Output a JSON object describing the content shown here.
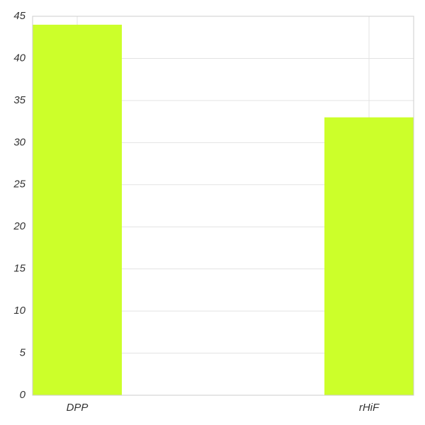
{
  "chart_data": {
    "type": "bar",
    "title": "",
    "xlabel": "",
    "ylabel": "",
    "categories": [
      "DPP",
      "rHiF"
    ],
    "series": [
      {
        "values": [
          44,
          33
        ]
      }
    ],
    "ylim": [
      0,
      45
    ],
    "yticks": [
      0,
      5,
      10,
      15,
      20,
      25,
      30,
      35,
      40,
      45
    ],
    "grid": true,
    "legend": "none",
    "colors": {
      "bar": "#ccff2a",
      "grid": "#e3e3e3",
      "frame": "#cccccc",
      "tick_text": "#333333"
    }
  }
}
